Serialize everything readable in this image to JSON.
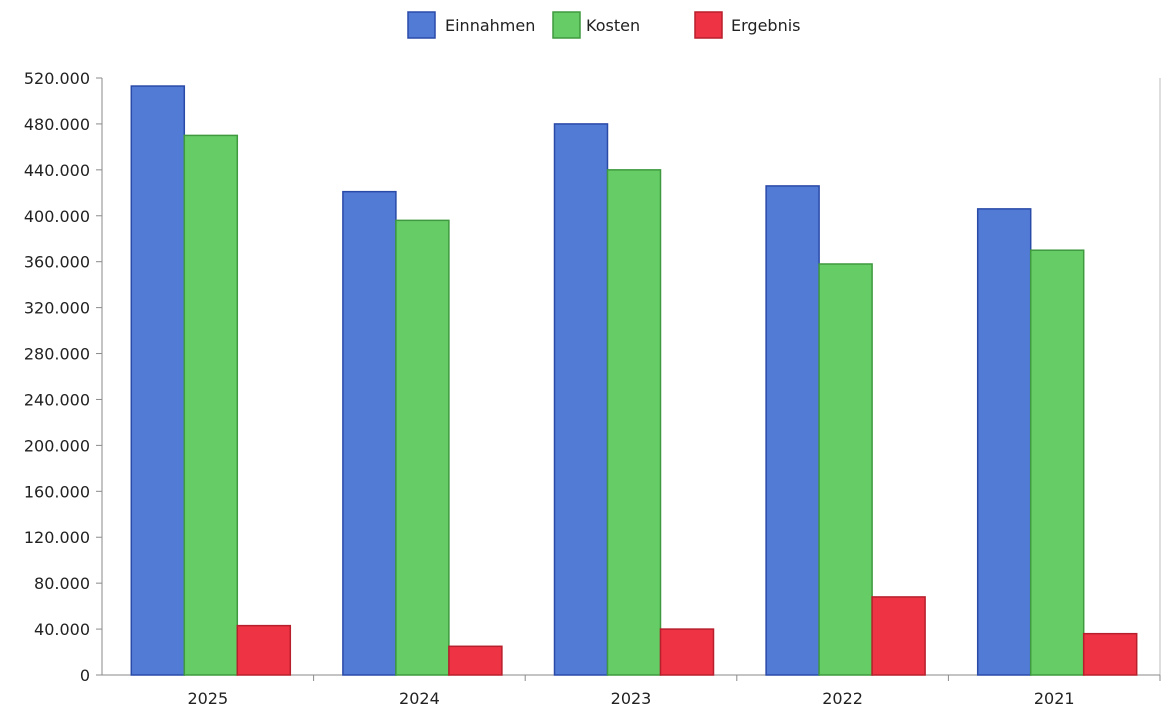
{
  "chart_data": {
    "type": "bar",
    "categories": [
      "2025",
      "2024",
      "2023",
      "2022",
      "2021"
    ],
    "series": [
      {
        "name": "Einnahmen",
        "color": "#527bd6",
        "values": [
          513000,
          421000,
          480000,
          426000,
          406000
        ]
      },
      {
        "name": "Kosten",
        "color": "#66cc66",
        "values": [
          470000,
          396000,
          440000,
          358000,
          370000
        ]
      },
      {
        "name": "Ergebnis",
        "color": "#ee3344",
        "values": [
          43000,
          25000,
          40000,
          68000,
          36000
        ]
      }
    ],
    "title": "",
    "xlabel": "",
    "ylabel": "",
    "ylim": [
      0,
      520000
    ],
    "yticks": [
      0,
      40000,
      80000,
      120000,
      160000,
      200000,
      240000,
      280000,
      320000,
      360000,
      400000,
      440000,
      480000,
      520000
    ],
    "ytick_labels": [
      "0",
      "40.000",
      "80.000",
      "120.000",
      "160.000",
      "200.000",
      "240.000",
      "280.000",
      "320.000",
      "360.000",
      "400.000",
      "440.000",
      "480.000",
      "520.000"
    ],
    "grid": false,
    "legend_position": "top-center"
  }
}
